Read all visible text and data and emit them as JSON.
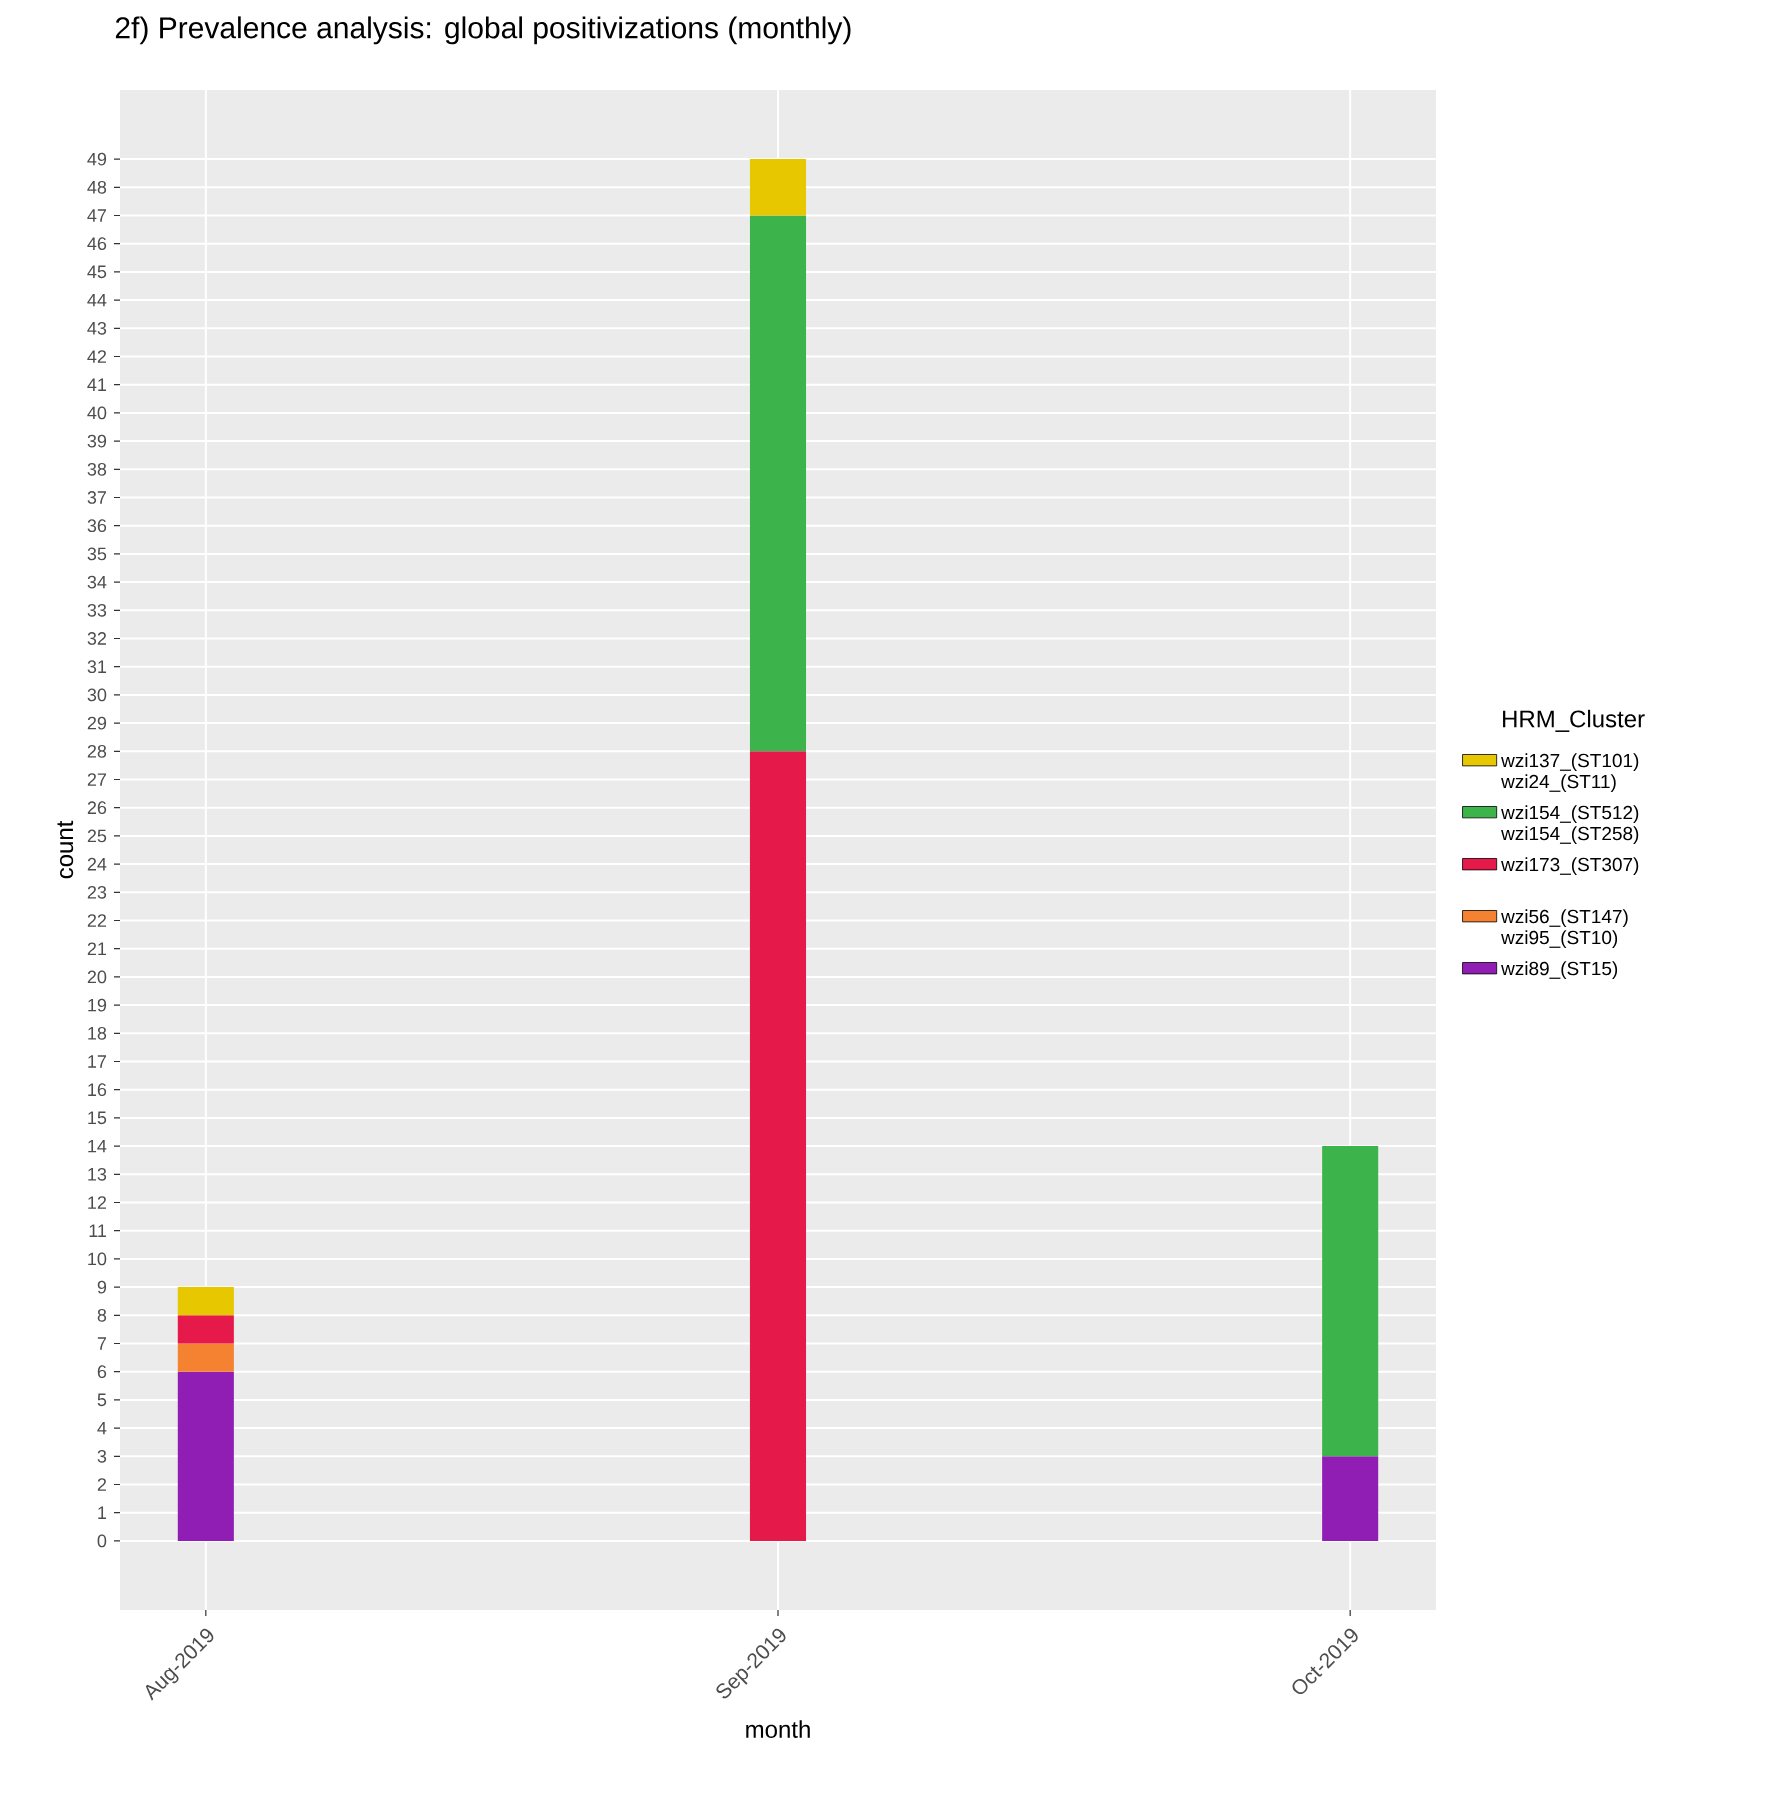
{
  "chart_data": {
    "type": "bar",
    "stacked": true,
    "title": "2f) Prevalence analysis: global positivizations (monthly)",
    "xlabel": "month",
    "ylabel": "count",
    "legend_title": "HRM_Cluster",
    "categories": [
      "Aug-2019",
      "Sep-2019",
      "Oct-2019"
    ],
    "series": [
      {
        "name": "wzi89_(ST15)",
        "color": "#911eb4",
        "values": [
          6,
          null,
          3
        ]
      },
      {
        "name": "wzi56_(ST147) wzi95_(ST10)",
        "color": "#f58231",
        "values": [
          1,
          null,
          null
        ]
      },
      {
        "name": "wzi173_(ST307)",
        "color": "#e6194b",
        "values": [
          1,
          28,
          null
        ]
      },
      {
        "name": "wzi154_(ST512) wzi154_(ST258)",
        "color": "#3cb44b",
        "values": [
          null,
          19,
          11
        ]
      },
      {
        "name": "wzi137_(ST101) wzi24_(ST11)",
        "color": "#e6c700",
        "values": [
          1,
          2,
          null
        ]
      }
    ],
    "ylim": [
      -2.45,
      51.45
    ],
    "yticks": [
      0,
      1,
      2,
      3,
      4,
      5,
      6,
      7,
      8,
      9,
      10,
      11,
      12,
      13,
      14,
      15,
      16,
      17,
      18,
      19,
      20,
      21,
      22,
      23,
      24,
      25,
      26,
      27,
      28,
      29,
      30,
      31,
      32,
      33,
      34,
      35,
      36,
      37,
      38,
      39,
      40,
      41,
      42,
      43,
      44,
      45,
      46,
      47,
      48,
      49
    ],
    "grid": true,
    "legend": "right"
  }
}
